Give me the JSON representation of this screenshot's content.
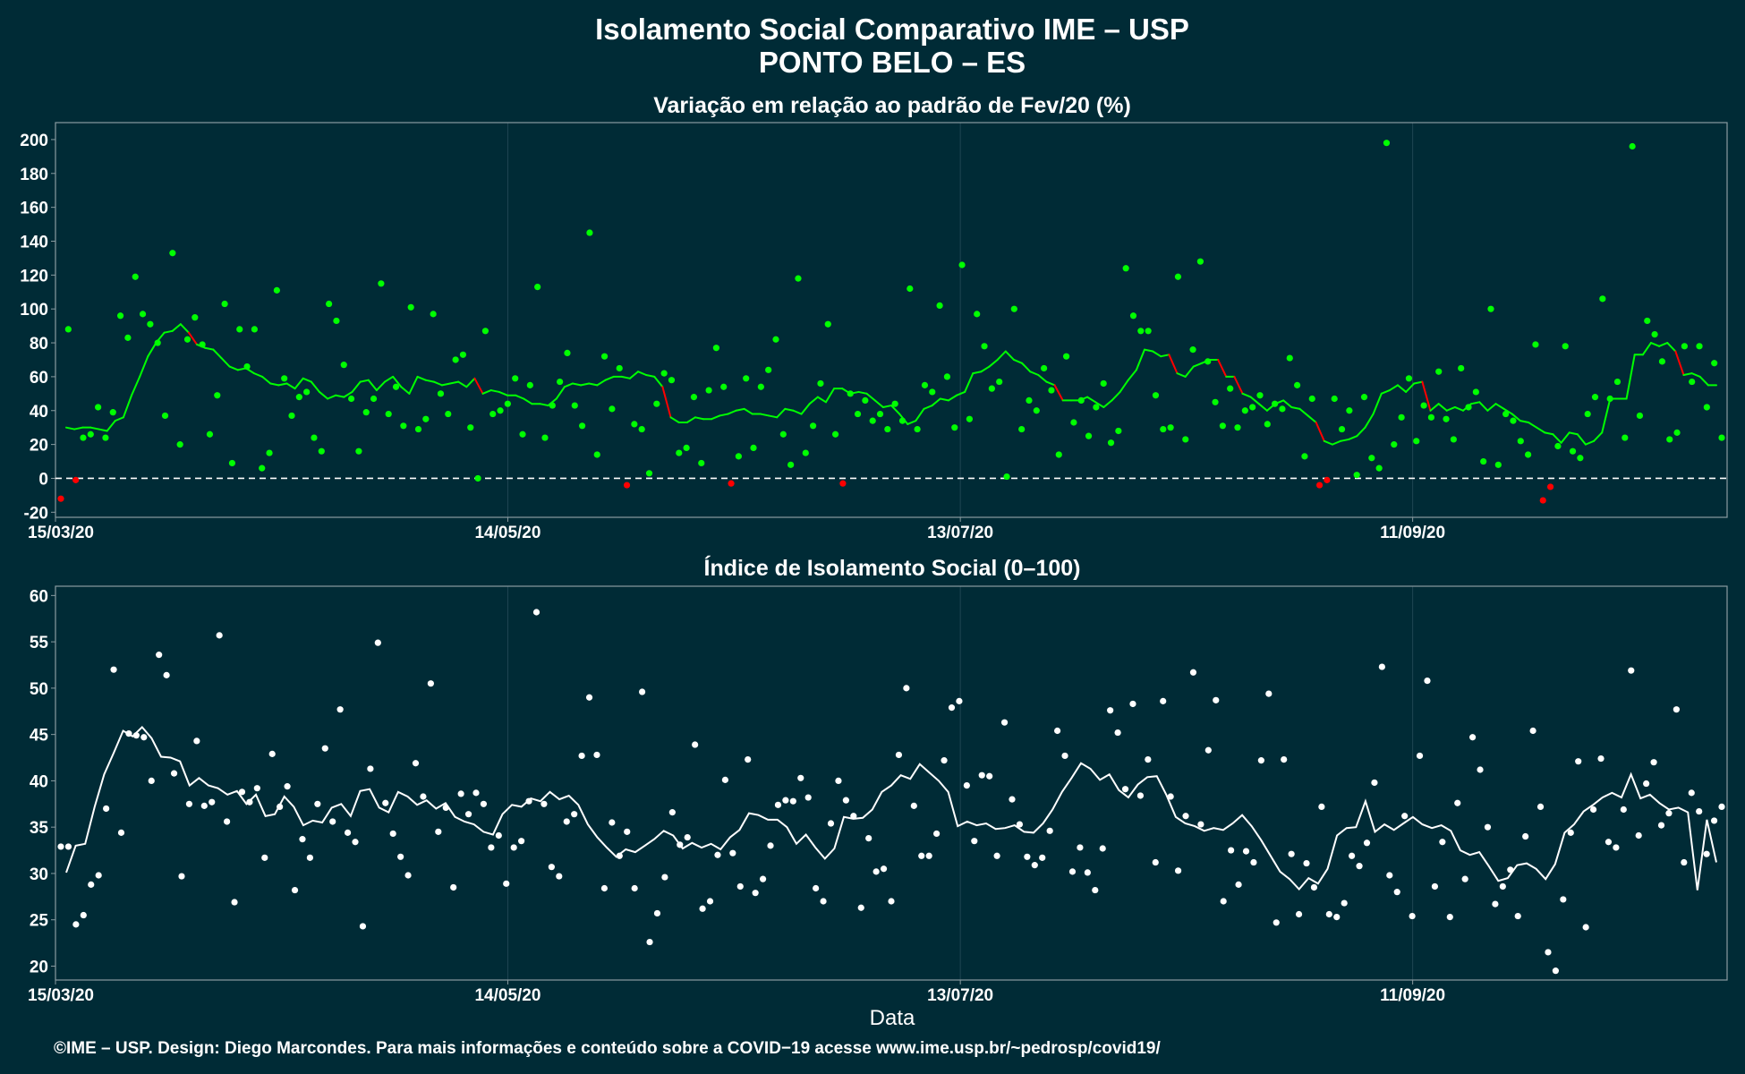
{
  "header": {
    "title": "Isolamento Social Comparativo IME – USP",
    "subtitle": "PONTO BELO – ES"
  },
  "footer": {
    "xlabel": "Data",
    "credit": "©IME – USP. Design: Diego Marcondes. Para mais informações e conteúdo sobre a COVID−19 acesse www.ime.usp.br/~pedrosp/covid19/"
  },
  "colors": {
    "background": "#002b36",
    "panel_border": "#8a9ba0",
    "positive_points": "#00ff00",
    "negative_points": "#ff0000",
    "index_points": "#ffffff",
    "text": "#ffffff"
  },
  "chart_data": [
    {
      "type": "scatter",
      "title": "Variação em relação ao padrão de Fev/20 (%)",
      "x_tick_labels": [
        "15/03/20",
        "14/05/20",
        "13/07/20",
        "11/09/20"
      ],
      "x_range": [
        "2020-03-15",
        "2020-10-28"
      ],
      "y_ticks": [
        -20,
        0,
        20,
        40,
        60,
        80,
        100,
        120,
        140,
        160,
        180,
        200
      ],
      "ylim": [
        -23,
        210
      ],
      "reference_line": 0,
      "series": [
        {
          "style": "points",
          "color_rule": "green when >= 0, red when < 0",
          "values": [
            -12,
            88,
            -1,
            24,
            26,
            42,
            24,
            39,
            96,
            83,
            119,
            97,
            91,
            80,
            37,
            133,
            20,
            82,
            95,
            79,
            26,
            49,
            103,
            9,
            88,
            66,
            88,
            6,
            15,
            111,
            59,
            37,
            48,
            51,
            24,
            16,
            103,
            93,
            67,
            47,
            16,
            39,
            47,
            115,
            38,
            54,
            31,
            101,
            29,
            35,
            97,
            50,
            38,
            70,
            73,
            30,
            0,
            87,
            38,
            40,
            44,
            59,
            26,
            55,
            113,
            24,
            43,
            57,
            74,
            43,
            31,
            145,
            14,
            72,
            41,
            65,
            -4,
            32,
            29,
            3,
            44,
            62,
            58,
            15,
            18,
            48,
            9,
            52,
            77,
            54,
            -3,
            13,
            59,
            18,
            54,
            64,
            82,
            26,
            8,
            118,
            15,
            31,
            56,
            91,
            26,
            -3,
            50,
            38,
            46,
            34,
            38,
            29,
            44,
            34,
            112,
            29,
            55,
            51,
            102,
            60,
            30,
            126,
            35,
            97,
            78,
            53,
            57,
            1,
            100,
            29,
            46,
            40,
            65,
            52,
            14,
            72,
            33,
            46,
            25,
            42,
            56,
            21,
            28,
            124,
            96,
            87,
            87,
            49,
            29,
            30,
            119,
            23,
            76,
            128,
            69,
            45,
            31,
            53,
            30,
            40,
            42,
            49,
            32,
            44,
            41,
            71,
            55,
            13,
            47,
            -4,
            -1,
            47,
            29,
            40,
            2,
            48,
            12,
            6,
            198,
            20,
            36,
            59,
            22,
            43,
            36,
            63,
            35,
            23,
            65,
            42,
            51,
            10,
            100,
            8,
            38,
            34,
            22,
            14,
            79,
            -13,
            -5,
            19,
            78,
            16,
            12,
            38,
            48,
            106,
            47,
            57,
            24,
            196,
            37,
            93,
            85,
            69,
            23,
            27,
            78,
            57,
            78,
            42,
            68,
            24
          ]
        },
        {
          "style": "line",
          "name_rule": "moving average, green when >= 0 trend, red segments when declining",
          "values": [
            30,
            29,
            30,
            30,
            29,
            28,
            34,
            36,
            49,
            60,
            72,
            80,
            86,
            87,
            91,
            86,
            79,
            77,
            76,
            71,
            66,
            64,
            65,
            62,
            60,
            56,
            55,
            56,
            53,
            59,
            57,
            51,
            47,
            49,
            48,
            51,
            57,
            58,
            52,
            57,
            60,
            54,
            50,
            60,
            58,
            57,
            55,
            56,
            57,
            54,
            59,
            50,
            52,
            51,
            49,
            49,
            47,
            44,
            44,
            43,
            47,
            54,
            56,
            55,
            56,
            55,
            58,
            60,
            60,
            59,
            63,
            61,
            60,
            54,
            36,
            33,
            33,
            36,
            35,
            35,
            37,
            38,
            40,
            41,
            38,
            38,
            37,
            36,
            41,
            40,
            38,
            44,
            48,
            45,
            53,
            53,
            50,
            51,
            50,
            46,
            42,
            43,
            38,
            32,
            34,
            41,
            43,
            47,
            46,
            49,
            51,
            62,
            63,
            66,
            70,
            75,
            70,
            68,
            63,
            61,
            57,
            55,
            46,
            46,
            46,
            48,
            45,
            42,
            46,
            51,
            58,
            64,
            76,
            75,
            72,
            73,
            62,
            60,
            66,
            68,
            70,
            70,
            60,
            60,
            50,
            48,
            44,
            40,
            44,
            46,
            42,
            41,
            37,
            33,
            22,
            20,
            22,
            23,
            25,
            30,
            38,
            50,
            52,
            55,
            51,
            56,
            57,
            40,
            44,
            40,
            42,
            40,
            44,
            45,
            40,
            44,
            41,
            38,
            34,
            33,
            30,
            27,
            26,
            21,
            27,
            26,
            20,
            22,
            27,
            47,
            47,
            47,
            73,
            73,
            80,
            78,
            80,
            75,
            61,
            62,
            60,
            55,
            55
          ]
        }
      ]
    },
    {
      "type": "scatter",
      "title": "Índice de Isolamento Social (0–100)",
      "x_tick_labels": [
        "15/03/20",
        "14/05/20",
        "13/07/20",
        "11/09/20"
      ],
      "x_range": [
        "2020-03-15",
        "2020-10-28"
      ],
      "y_ticks": [
        20,
        25,
        30,
        35,
        40,
        45,
        50,
        55,
        60
      ],
      "ylim": [
        18.5,
        61
      ],
      "series": [
        {
          "style": "points",
          "values": [
            32.9,
            32.9,
            24.5,
            25.5,
            28.8,
            29.8,
            37,
            52,
            34.4,
            45.1,
            44.9,
            44.7,
            40,
            53.6,
            51.4,
            40.8,
            29.7,
            37.5,
            44.3,
            37.3,
            37.7,
            55.7,
            35.6,
            26.9,
            38.8,
            37.7,
            39.2,
            31.7,
            42.9,
            37.2,
            39.4,
            28.2,
            33.7,
            31.7,
            37.5,
            43.5,
            35.6,
            47.7,
            34.4,
            33.4,
            24.3,
            41.3,
            54.9,
            37.6,
            34.3,
            31.8,
            29.8,
            41.9,
            38.3,
            50.5,
            34.5,
            37.1,
            28.5,
            38.6,
            36.4,
            38.7,
            37.5,
            32.8,
            34.1,
            28.9,
            32.8,
            33.5,
            37.8,
            58.2,
            37.5,
            30.7,
            29.7,
            35.6,
            36.4,
            42.7,
            49,
            42.8,
            28.4,
            35.5,
            31.9,
            34.5,
            28.4,
            49.6,
            22.6,
            25.7,
            29.6,
            36.6,
            33.1,
            33.9,
            43.9,
            26.2,
            27,
            32,
            40.1,
            32.2,
            28.6,
            42.3,
            27.9,
            29.4,
            33,
            37.4,
            37.9,
            37.8,
            40.3,
            38.2,
            28.4,
            27,
            35.4,
            40,
            37.9,
            36.2,
            26.3,
            33.8,
            30.2,
            30.5,
            27,
            42.8,
            50,
            37.3,
            31.9,
            31.9,
            34.3,
            42.2,
            47.9,
            48.6,
            39.5,
            33.5,
            40.6,
            40.5,
            31.9,
            46.3,
            38,
            35.3,
            31.8,
            30.9,
            31.7,
            34.6,
            45.4,
            42.7,
            30.2,
            32.8,
            30.1,
            28.2,
            32.7,
            47.6,
            45.2,
            39.1,
            48.3,
            38.4,
            42.3,
            31.2,
            48.6,
            38.3,
            30.3,
            36.2,
            51.7,
            35.3,
            43.3,
            48.7,
            27,
            32.5,
            28.8,
            32.4,
            31.2,
            42.2,
            49.4,
            24.7,
            42.3,
            32.1,
            25.6,
            31.1,
            28.5,
            37.2,
            25.6,
            25.3,
            26.8,
            31.9,
            30.8,
            33.3,
            39.8,
            52.3,
            29.8,
            28,
            36.2,
            25.4,
            42.7,
            50.8,
            28.6,
            33.4,
            25.3,
            37.6,
            29.4,
            44.7,
            41.2,
            35,
            26.7,
            28.6,
            30.4,
            25.4,
            34,
            45.4,
            37.2,
            21.5,
            19.5,
            27.2,
            34.4,
            42.1,
            24.2,
            36.9,
            42.4,
            33.4,
            32.8,
            36.9,
            51.9,
            34.1,
            39.7,
            42,
            35.2,
            36.5,
            47.7,
            31.2,
            38.7,
            36.7,
            32.1,
            35.7,
            37.2
          ]
        },
        {
          "style": "line",
          "values": [
            30.1,
            33,
            33.2,
            37.2,
            40.7,
            43,
            45.4,
            44.8,
            45.8,
            44.6,
            42.6,
            42.5,
            42.1,
            39.5,
            40.3,
            39.5,
            39.2,
            38.5,
            38.9,
            37.5,
            38.5,
            36.2,
            36.4,
            38.3,
            37.2,
            35.2,
            35.7,
            35.5,
            37.1,
            37.5,
            36.2,
            38.9,
            39.1,
            37.1,
            36.6,
            38.8,
            38.3,
            37.4,
            37.9,
            37,
            37.6,
            36.1,
            35.6,
            35.3,
            34.5,
            34.2,
            36.4,
            37.4,
            37.2,
            38.1,
            37.8,
            38.8,
            38,
            38.4,
            37.4,
            35.3,
            33.9,
            32.8,
            31.8,
            32.6,
            32.3,
            33,
            33.7,
            34.6,
            34.1,
            32.7,
            33.3,
            32.8,
            33.2,
            32.6,
            33.9,
            34.7,
            36.5,
            36.3,
            35.8,
            35.8,
            35,
            33.2,
            34.2,
            32.8,
            31.6,
            32.7,
            36.1,
            35.9,
            36,
            36.9,
            38.8,
            39.5,
            40.6,
            40.2,
            41.8,
            40.9,
            40,
            38.8,
            35.1,
            35.6,
            35.2,
            35.4,
            34.8,
            34.9,
            35.2,
            34.5,
            34.4,
            35.4,
            36.9,
            38.8,
            40.3,
            41.9,
            41.3,
            40.1,
            40.7,
            39,
            38.2,
            39.6,
            40.4,
            40.5,
            38.5,
            36.1,
            35.4,
            35.1,
            34.6,
            34.9,
            34.7,
            35.4,
            36.3,
            35.1,
            33.6,
            31.9,
            30.2,
            29.4,
            28.3,
            29.5,
            28.9,
            30.5,
            34.1,
            34.9,
            35,
            37.8,
            34.5,
            35.3,
            34.7,
            35.4,
            36.1,
            35.3,
            34.9,
            35.2,
            34.6,
            32.5,
            32,
            32.3,
            30.8,
            29.2,
            29.5,
            30.9,
            31.1,
            30.5,
            29.4,
            31,
            34.4,
            35.3,
            36.7,
            37.4,
            38.2,
            38.7,
            38.2,
            40.7,
            38.1,
            38.5,
            37.6,
            36.9,
            37.1,
            36.6,
            28.2,
            35.8,
            31.2
          ]
        }
      ]
    }
  ]
}
